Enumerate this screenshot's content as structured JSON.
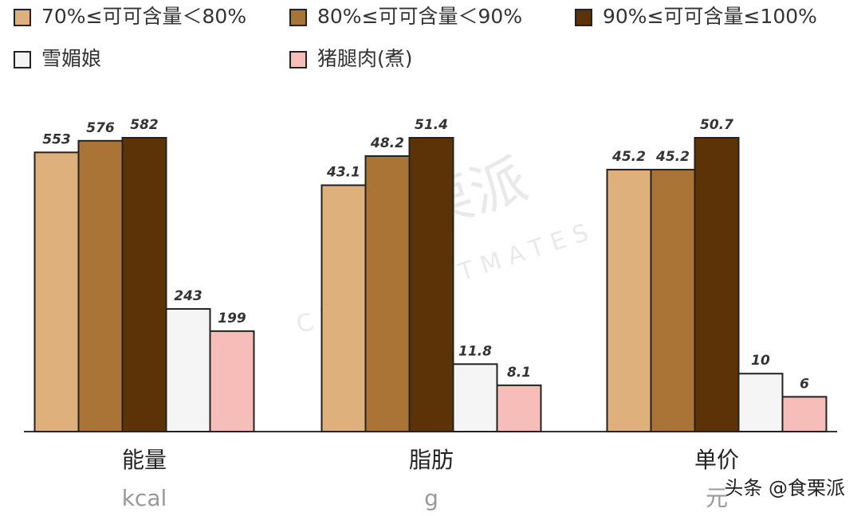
{
  "chart_data": {
    "type": "bar",
    "categories": [
      "能量",
      "脂肪",
      "单价"
    ],
    "units": [
      "kcal",
      "g",
      "元"
    ],
    "series": [
      {
        "name": "70%≤可可含量＜80%",
        "color": "#deb07c",
        "values": [
          553,
          43.1,
          45.2
        ]
      },
      {
        "name": "80%≤可可含量＜90%",
        "color": "#a97436",
        "values": [
          576,
          48.2,
          45.2
        ]
      },
      {
        "name": "90%≤可可含量≤100%",
        "color": "#5c3306",
        "values": [
          582,
          51.4,
          50.7
        ]
      },
      {
        "name": "雪媚娘",
        "color": "#f5f5f5",
        "values": [
          243,
          11.8,
          10
        ]
      },
      {
        "name": "猪腿肉(煮)",
        "color": "#f7bdb8",
        "values": [
          199,
          8.1,
          6
        ]
      }
    ],
    "watermark": {
      "brand": "食栗派",
      "english": "CHESTNUTMATES",
      "credit": "头条 @食栗派"
    }
  }
}
